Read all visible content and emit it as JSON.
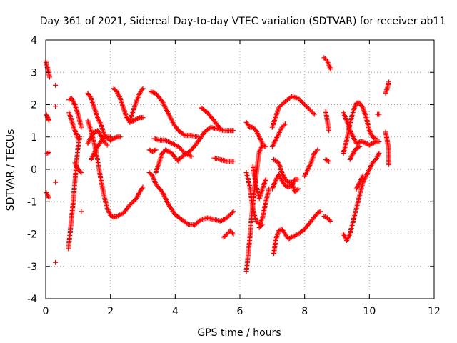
{
  "chart_data": {
    "type": "scatter",
    "title": "Day 361 of 2021, Sidereal Day-to-day VTEC variation (SDTVAR) for receiver ab11",
    "xlabel": "GPS time / hours",
    "ylabel": "SDTVAR / TECUs",
    "xlim": [
      0,
      12
    ],
    "ylim": [
      -4,
      4
    ],
    "xticks": [
      "0",
      "2",
      "4",
      "6",
      "8",
      "10",
      "12"
    ],
    "yticks": [
      "-4",
      "-3",
      "-2",
      "-1",
      "0",
      "1",
      "2",
      "3",
      "4"
    ],
    "grid": true,
    "marker": "+",
    "series_color": "#ff0000",
    "tracks": [
      [
        [
          0.0,
          3.35
        ],
        [
          0.05,
          3.15
        ],
        [
          0.1,
          2.95
        ],
        [
          0.12,
          2.85
        ]
      ],
      [
        [
          0.02,
          1.7
        ],
        [
          0.06,
          1.6
        ],
        [
          0.1,
          1.5
        ]
      ],
      [
        [
          0.02,
          0.48
        ],
        [
          0.06,
          0.5
        ],
        [
          0.1,
          0.52
        ]
      ],
      [
        [
          0.02,
          -0.72
        ],
        [
          0.06,
          -0.8
        ],
        [
          0.1,
          -0.88
        ]
      ],
      [
        [
          0.3,
          2.6
        ]
      ],
      [
        [
          0.3,
          1.95
        ]
      ],
      [
        [
          0.3,
          -0.4
        ]
      ],
      [
        [
          0.3,
          -2.88
        ]
      ],
      [
        [
          0.7,
          -2.45
        ],
        [
          0.75,
          -2.0
        ],
        [
          0.8,
          -1.5
        ],
        [
          0.85,
          -1.0
        ],
        [
          0.9,
          -0.4
        ],
        [
          0.95,
          0.2
        ],
        [
          1.0,
          0.7
        ],
        [
          1.05,
          1.0
        ]
      ],
      [
        [
          0.72,
          2.15
        ],
        [
          0.8,
          2.2
        ],
        [
          0.9,
          2.0
        ],
        [
          1.0,
          1.7
        ],
        [
          1.1,
          1.3
        ]
      ],
      [
        [
          0.72,
          1.75
        ],
        [
          0.8,
          1.5
        ],
        [
          0.9,
          1.2
        ],
        [
          1.0,
          0.95
        ]
      ],
      [
        [
          0.9,
          0.2
        ],
        [
          1.0,
          0.0
        ],
        [
          1.1,
          -0.1
        ]
      ],
      [
        [
          1.1,
          -1.3
        ]
      ],
      [
        [
          1.3,
          2.35
        ],
        [
          1.4,
          2.2
        ],
        [
          1.5,
          1.9
        ],
        [
          1.6,
          1.6
        ],
        [
          1.7,
          1.4
        ],
        [
          1.8,
          1.1
        ],
        [
          1.9,
          0.95
        ],
        [
          2.0,
          0.9
        ],
        [
          2.1,
          0.95
        ],
        [
          2.2,
          1.0
        ],
        [
          2.3,
          1.0
        ]
      ],
      [
        [
          1.3,
          1.5
        ],
        [
          1.4,
          1.2
        ],
        [
          1.5,
          0.8
        ],
        [
          1.6,
          0.3
        ],
        [
          1.7,
          -0.3
        ],
        [
          1.8,
          -0.8
        ],
        [
          1.9,
          -1.2
        ],
        [
          2.0,
          -1.42
        ],
        [
          2.1,
          -1.48
        ],
        [
          2.2,
          -1.45
        ],
        [
          2.4,
          -1.35
        ],
        [
          2.6,
          -1.1
        ],
        [
          2.8,
          -0.9
        ],
        [
          2.9,
          -0.7
        ],
        [
          3.0,
          -0.55
        ]
      ],
      [
        [
          1.3,
          0.8
        ],
        [
          1.4,
          1.0
        ],
        [
          1.5,
          1.15
        ],
        [
          1.6,
          1.2
        ],
        [
          1.7,
          1.05
        ],
        [
          1.8,
          0.85
        ],
        [
          1.9,
          0.75
        ]
      ],
      [
        [
          1.4,
          0.3
        ],
        [
          1.6,
          0.7
        ],
        [
          1.8,
          1.0
        ],
        [
          2.0,
          1.0
        ]
      ],
      [
        [
          2.1,
          2.5
        ],
        [
          2.2,
          2.4
        ],
        [
          2.3,
          2.2
        ],
        [
          2.4,
          1.9
        ],
        [
          2.5,
          1.6
        ],
        [
          2.6,
          1.45
        ],
        [
          2.7,
          1.5
        ],
        [
          2.8,
          1.55
        ],
        [
          2.9,
          1.6
        ],
        [
          3.0,
          1.6
        ]
      ],
      [
        [
          2.6,
          1.5
        ],
        [
          2.7,
          1.8
        ],
        [
          2.8,
          2.1
        ],
        [
          2.9,
          2.35
        ],
        [
          3.0,
          2.5
        ]
      ],
      [
        [
          3.25,
          2.4
        ],
        [
          3.4,
          2.35
        ],
        [
          3.6,
          2.1
        ],
        [
          3.8,
          1.7
        ],
        [
          3.95,
          1.4
        ],
        [
          4.1,
          1.2
        ],
        [
          4.3,
          1.05
        ],
        [
          4.5,
          1.05
        ],
        [
          4.7,
          1.0
        ]
      ],
      [
        [
          3.2,
          0.6
        ],
        [
          3.3,
          0.55
        ],
        [
          3.4,
          0.6
        ]
      ],
      [
        [
          3.35,
          0.95
        ],
        [
          3.5,
          0.9
        ],
        [
          3.7,
          0.9
        ],
        [
          3.9,
          0.8
        ],
        [
          4.1,
          0.7
        ],
        [
          4.3,
          0.5
        ],
        [
          4.5,
          0.4
        ]
      ],
      [
        [
          3.4,
          -0.1
        ],
        [
          3.5,
          0.2
        ],
        [
          3.6,
          0.5
        ],
        [
          3.7,
          0.6
        ],
        [
          3.8,
          0.55
        ],
        [
          3.9,
          0.5
        ],
        [
          4.0,
          0.35
        ],
        [
          4.1,
          0.25
        ]
      ],
      [
        [
          3.2,
          -0.1
        ],
        [
          3.3,
          -0.2
        ],
        [
          3.4,
          -0.45
        ],
        [
          3.6,
          -0.7
        ],
        [
          3.8,
          -1.1
        ],
        [
          4.0,
          -1.4
        ],
        [
          4.2,
          -1.55
        ],
        [
          4.4,
          -1.7
        ],
        [
          4.6,
          -1.72
        ],
        [
          4.8,
          -1.55
        ],
        [
          5.0,
          -1.5
        ],
        [
          5.2,
          -1.55
        ],
        [
          5.4,
          -1.6
        ],
        [
          5.6,
          -1.5
        ],
        [
          5.8,
          -1.3
        ]
      ],
      [
        [
          4.1,
          0.3
        ],
        [
          4.3,
          0.45
        ],
        [
          4.5,
          0.6
        ],
        [
          4.7,
          0.85
        ],
        [
          4.9,
          1.15
        ],
        [
          5.1,
          1.3
        ],
        [
          5.3,
          1.25
        ],
        [
          5.5,
          1.2
        ],
        [
          5.7,
          1.2
        ],
        [
          5.8,
          1.2
        ]
      ],
      [
        [
          4.8,
          1.9
        ],
        [
          5.0,
          1.75
        ],
        [
          5.2,
          1.5
        ],
        [
          5.4,
          1.25
        ]
      ],
      [
        [
          5.2,
          0.35
        ],
        [
          5.4,
          0.3
        ],
        [
          5.6,
          0.25
        ],
        [
          5.8,
          0.25
        ]
      ],
      [
        [
          5.5,
          -2.1
        ],
        [
          5.6,
          -2.0
        ],
        [
          5.7,
          -1.9
        ],
        [
          5.8,
          -2.0
        ]
      ],
      [
        [
          6.2,
          1.45
        ],
        [
          6.3,
          1.3
        ],
        [
          6.4,
          1.3
        ],
        [
          6.5,
          1.2
        ],
        [
          6.6,
          1.0
        ],
        [
          6.7,
          0.8
        ]
      ],
      [
        [
          6.2,
          -3.15
        ],
        [
          6.25,
          -2.7
        ],
        [
          6.3,
          -2.2
        ],
        [
          6.35,
          -1.6
        ],
        [
          6.4,
          -1.1
        ],
        [
          6.45,
          -0.6
        ],
        [
          6.5,
          -0.2
        ],
        [
          6.55,
          0.2
        ],
        [
          6.6,
          0.55
        ],
        [
          6.7,
          0.75
        ],
        [
          6.8,
          0.7
        ]
      ],
      [
        [
          6.2,
          -0.1
        ],
        [
          6.3,
          -0.5
        ],
        [
          6.4,
          -1.2
        ],
        [
          6.5,
          -1.6
        ],
        [
          6.6,
          -1.7
        ],
        [
          6.7,
          -1.5
        ],
        [
          6.8,
          -1.0
        ],
        [
          6.9,
          -0.6
        ]
      ],
      [
        [
          6.4,
          0.1
        ],
        [
          6.5,
          -0.5
        ],
        [
          6.6,
          -0.9
        ],
        [
          6.7,
          -0.6
        ],
        [
          6.8,
          -0.3
        ]
      ],
      [
        [
          6.6,
          -1.8
        ],
        [
          6.7,
          -1.7
        ]
      ],
      [
        [
          7.05,
          -2.6
        ],
        [
          7.1,
          -2.2
        ],
        [
          7.2,
          -1.9
        ],
        [
          7.3,
          -1.85
        ],
        [
          7.4,
          -2.0
        ],
        [
          7.5,
          -2.15
        ],
        [
          7.6,
          -2.1
        ],
        [
          7.8,
          -2.0
        ],
        [
          8.0,
          -1.85
        ],
        [
          8.2,
          -1.6
        ],
        [
          8.4,
          -1.35
        ],
        [
          8.5,
          -1.3
        ]
      ],
      [
        [
          7.0,
          1.3
        ],
        [
          7.1,
          1.6
        ],
        [
          7.2,
          1.9
        ],
        [
          7.4,
          2.1
        ],
        [
          7.6,
          2.25
        ],
        [
          7.8,
          2.2
        ],
        [
          8.0,
          2.0
        ],
        [
          8.2,
          1.8
        ],
        [
          8.3,
          1.7
        ]
      ],
      [
        [
          7.0,
          0.7
        ],
        [
          7.1,
          0.9
        ],
        [
          7.2,
          1.1
        ],
        [
          7.3,
          1.3
        ],
        [
          7.4,
          1.4
        ]
      ],
      [
        [
          7.0,
          -0.6
        ],
        [
          7.1,
          -0.35
        ],
        [
          7.2,
          -0.15
        ],
        [
          7.3,
          -0.35
        ],
        [
          7.4,
          -0.5
        ],
        [
          7.5,
          -0.55
        ],
        [
          7.6,
          -0.5
        ],
        [
          7.7,
          -0.3
        ],
        [
          7.8,
          -0.3
        ]
      ],
      [
        [
          7.05,
          0.3
        ],
        [
          7.2,
          0.2
        ],
        [
          7.3,
          -0.1
        ],
        [
          7.4,
          -0.3
        ],
        [
          7.5,
          -0.4
        ],
        [
          7.6,
          -0.4
        ],
        [
          7.7,
          -0.7
        ],
        [
          7.8,
          -0.6
        ]
      ],
      [
        [
          8.0,
          -0.2
        ],
        [
          8.1,
          0.0
        ],
        [
          8.2,
          0.2
        ],
        [
          8.3,
          0.5
        ],
        [
          8.4,
          0.6
        ]
      ],
      [
        [
          8.6,
          3.45
        ],
        [
          8.7,
          3.35
        ],
        [
          8.8,
          3.1
        ]
      ],
      [
        [
          8.65,
          1.8
        ],
        [
          8.7,
          1.5
        ],
        [
          8.75,
          1.2
        ]
      ],
      [
        [
          8.65,
          0.3
        ],
        [
          8.75,
          0.25
        ]
      ],
      [
        [
          8.6,
          -1.45
        ],
        [
          8.7,
          -1.5
        ],
        [
          8.8,
          -1.6
        ]
      ],
      [
        [
          9.2,
          -2.0
        ],
        [
          9.3,
          -2.2
        ],
        [
          9.4,
          -2.0
        ],
        [
          9.5,
          -1.6
        ],
        [
          9.6,
          -1.2
        ],
        [
          9.7,
          -0.8
        ],
        [
          9.8,
          -0.4
        ],
        [
          9.9,
          -0.2
        ],
        [
          10.0,
          0.0
        ],
        [
          10.1,
          0.2
        ],
        [
          10.2,
          0.3
        ],
        [
          10.3,
          0.5
        ]
      ],
      [
        [
          9.2,
          1.75
        ],
        [
          9.3,
          1.5
        ],
        [
          9.4,
          1.2
        ],
        [
          9.5,
          1.0
        ],
        [
          9.6,
          0.8
        ],
        [
          9.7,
          0.85
        ],
        [
          9.8,
          0.85
        ],
        [
          9.9,
          0.8
        ],
        [
          10.0,
          0.75
        ],
        [
          10.1,
          0.8
        ],
        [
          10.2,
          0.85
        ],
        [
          10.3,
          0.85
        ]
      ],
      [
        [
          9.2,
          0.5
        ],
        [
          9.3,
          0.9
        ],
        [
          9.4,
          1.4
        ],
        [
          9.5,
          1.8
        ],
        [
          9.6,
          2.05
        ],
        [
          9.7,
          2.05
        ],
        [
          9.8,
          1.9
        ],
        [
          9.9,
          1.6
        ],
        [
          10.0,
          1.2
        ],
        [
          10.1,
          1.0
        ],
        [
          10.2,
          0.95
        ]
      ],
      [
        [
          9.4,
          0.3
        ],
        [
          9.5,
          0.5
        ],
        [
          9.6,
          0.65
        ],
        [
          9.7,
          0.7
        ]
      ],
      [
        [
          9.6,
          -0.6
        ],
        [
          9.7,
          -0.4
        ],
        [
          9.8,
          -0.2
        ]
      ],
      [
        [
          10.25,
          1.7
        ],
        [
          10.3,
          1.7
        ]
      ],
      [
        [
          10.5,
          2.35
        ],
        [
          10.55,
          2.5
        ],
        [
          10.6,
          2.7
        ]
      ],
      [
        [
          10.5,
          1.15
        ],
        [
          10.55,
          0.9
        ],
        [
          10.6,
          0.6
        ],
        [
          10.6,
          0.15
        ]
      ]
    ]
  }
}
